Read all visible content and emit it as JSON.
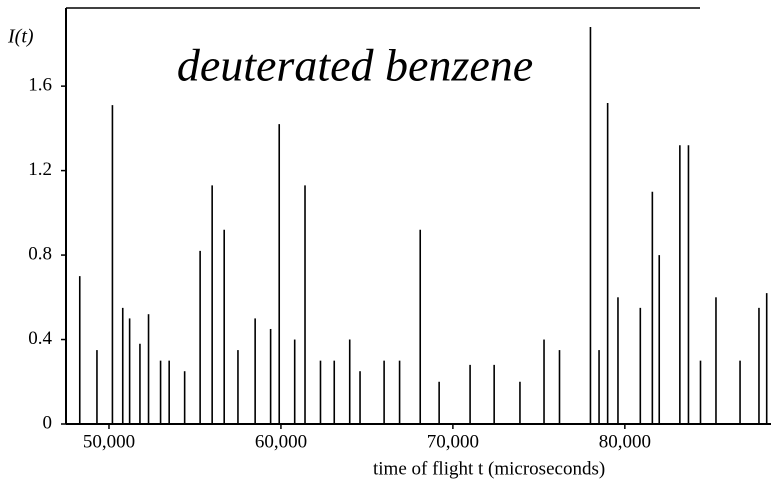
{
  "chart_data": {
    "type": "stem",
    "title": "deuterated benzene",
    "y_label": "I(t)",
    "x_label": "time of flight  t  (microseconds)",
    "color": "#000000",
    "xlim": [
      47500,
      88500
    ],
    "ylim": [
      0,
      1.97
    ],
    "xticks": [
      {
        "value": 50000,
        "label": "50,000"
      },
      {
        "value": 60000,
        "label": "60,000"
      },
      {
        "value": 70000,
        "label": "70,000"
      },
      {
        "value": 80000,
        "label": "80,000"
      }
    ],
    "yticks": [
      0,
      0.4,
      0.8,
      1.2,
      1.6
    ],
    "x": [
      48300,
      49300,
      50200,
      50800,
      51200,
      51800,
      52300,
      53000,
      53500,
      54400,
      55300,
      56000,
      56700,
      57500,
      58500,
      59400,
      59900,
      60800,
      61400,
      62300,
      63100,
      64000,
      64600,
      66000,
      66900,
      68100,
      69200,
      71000,
      72400,
      73900,
      75300,
      76200,
      78000,
      78500,
      79000,
      79600,
      80900,
      81600,
      82000,
      83200,
      83700,
      84400,
      85300,
      86700,
      87800,
      88250
    ],
    "values": [
      0.7,
      0.35,
      1.51,
      0.55,
      0.5,
      0.38,
      0.52,
      0.3,
      0.3,
      0.25,
      0.82,
      1.13,
      0.92,
      0.35,
      0.5,
      0.45,
      1.42,
      0.4,
      1.13,
      0.3,
      0.3,
      0.4,
      0.25,
      0.3,
      0.3,
      0.92,
      0.2,
      0.28,
      0.28,
      0.2,
      0.4,
      0.35,
      1.88,
      0.35,
      1.52,
      0.6,
      0.55,
      1.1,
      0.8,
      1.32,
      1.32,
      0.3,
      0.6,
      0.3,
      0.55,
      0.62
    ]
  }
}
